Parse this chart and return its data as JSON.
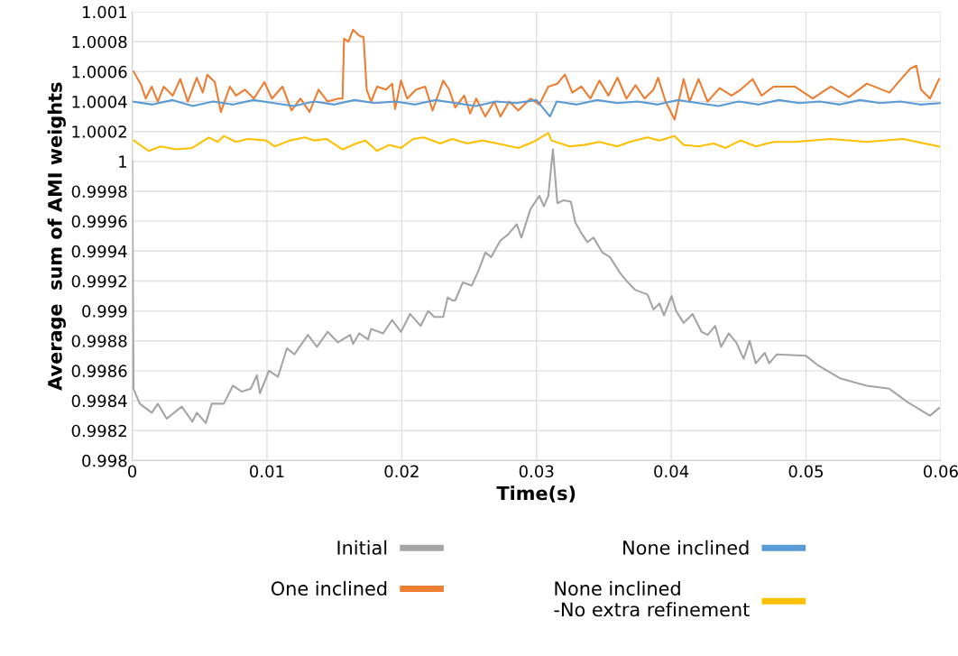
{
  "chart_data": {
    "type": "line",
    "xlabel": "Time(s)",
    "ylabel": "Average  sum of AMI weights",
    "xlim": [
      0,
      0.06
    ],
    "xticks": [
      0,
      0.01,
      0.02,
      0.03,
      0.04,
      0.05,
      0.06
    ],
    "ylim": [
      0.998,
      1.001
    ],
    "yticks": [
      0.998,
      0.9982,
      0.9984,
      0.9986,
      0.9988,
      0.999,
      0.9992,
      0.9994,
      0.9996,
      0.9998,
      1,
      1.0002,
      1.0004,
      1.0006,
      1.0008,
      1.001
    ],
    "grid": true,
    "legend": "bottom",
    "marker": "none",
    "line_style": "solid",
    "series": [
      {
        "name": "Initial",
        "color": "#a5a5a5",
        "x": [
          0,
          0.0001,
          0.00056,
          0.00145,
          0.0019,
          0.00256,
          0.00368,
          0.00446,
          0.0048,
          0.00546,
          0.0059,
          0.0068,
          0.00747,
          0.00814,
          0.0088,
          0.00925,
          0.00948,
          0.01015,
          0.01082,
          0.01148,
          0.01204,
          0.01304,
          0.01371,
          0.0145,
          0.01527,
          0.01617,
          0.01639,
          0.01684,
          0.0175,
          0.01773,
          0.01862,
          0.01929,
          0.01995,
          0.02062,
          0.0214,
          0.02196,
          0.02241,
          0.02308,
          0.02341,
          0.02375,
          0.02397,
          0.02453,
          0.0252,
          0.02575,
          0.0262,
          0.02664,
          0.02731,
          0.02787,
          0.02854,
          0.02888,
          0.02955,
          0.03021,
          0.03055,
          0.03088,
          0.03122,
          0.03155,
          0.032,
          0.03255,
          0.03289,
          0.03333,
          0.03378,
          0.03423,
          0.0349,
          0.03545,
          0.03623,
          0.03679,
          0.03734,
          0.03824,
          0.03868,
          0.03913,
          0.03946,
          0.04002,
          0.04036,
          0.04092,
          0.04158,
          0.04225,
          0.0427,
          0.04326,
          0.0437,
          0.04426,
          0.04482,
          0.04537,
          0.04582,
          0.04627,
          0.04694,
          0.04727,
          0.04783,
          0.05,
          0.05084,
          0.05251,
          0.05452,
          0.05619,
          0.05753,
          0.0592,
          0.05987
        ],
        "values": [
          1.0,
          0.99848,
          0.99838,
          0.99832,
          0.99838,
          0.99828,
          0.99836,
          0.99826,
          0.99832,
          0.99825,
          0.99838,
          0.99838,
          0.9985,
          0.99846,
          0.99848,
          0.99857,
          0.99845,
          0.9986,
          0.99856,
          0.99875,
          0.99871,
          0.99884,
          0.99876,
          0.99886,
          0.99879,
          0.99884,
          0.99878,
          0.99885,
          0.99881,
          0.99888,
          0.99885,
          0.99894,
          0.99886,
          0.99898,
          0.9989,
          0.999,
          0.99896,
          0.99896,
          0.99909,
          0.99907,
          0.99907,
          0.99919,
          0.99917,
          0.99928,
          0.99939,
          0.99936,
          0.99947,
          0.99951,
          0.99958,
          0.99949,
          0.99968,
          0.99977,
          0.9997,
          0.99977,
          1.00008,
          0.99972,
          0.99974,
          0.99973,
          0.99959,
          0.99952,
          0.99946,
          0.99949,
          0.99939,
          0.99936,
          0.99925,
          0.99919,
          0.99914,
          0.99911,
          0.99901,
          0.99905,
          0.99897,
          0.9991,
          0.999,
          0.99892,
          0.99898,
          0.99886,
          0.99884,
          0.9989,
          0.99876,
          0.99885,
          0.99879,
          0.99868,
          0.9988,
          0.99865,
          0.99872,
          0.99865,
          0.99871,
          0.9987,
          0.99864,
          0.99855,
          0.9985,
          0.99848,
          0.99839,
          0.9983,
          0.99835
        ]
      },
      {
        "name": "One inclined",
        "color": "#ed7d31",
        "x": [
          0.00011,
          0.00067,
          0.001,
          0.00145,
          0.0019,
          0.00234,
          0.00301,
          0.00357,
          0.00412,
          0.00479,
          0.00524,
          0.00557,
          0.00613,
          0.00658,
          0.00725,
          0.0077,
          0.00836,
          0.00903,
          0.00981,
          0.01037,
          0.01115,
          0.01182,
          0.01249,
          0.01316,
          0.01383,
          0.0145,
          0.01527,
          0.01561,
          0.01572,
          0.01605,
          0.01639,
          0.01684,
          0.01717,
          0.0174,
          0.01773,
          0.01817,
          0.01884,
          0.01929,
          0.01951,
          0.01995,
          0.0204,
          0.02107,
          0.02174,
          0.02229,
          0.02308,
          0.02352,
          0.02397,
          0.02464,
          0.02508,
          0.02553,
          0.0262,
          0.02687,
          0.02732,
          0.02798,
          0.02865,
          0.02955,
          0.03021,
          0.03088,
          0.03155,
          0.03211,
          0.03266,
          0.03333,
          0.034,
          0.03467,
          0.03534,
          0.03601,
          0.03668,
          0.03735,
          0.03802,
          0.03869,
          0.03902,
          0.03958,
          0.04025,
          0.04092,
          0.04136,
          0.04203,
          0.0427,
          0.04359,
          0.04448,
          0.04515,
          0.04604,
          0.04671,
          0.0476,
          0.04916,
          0.0505,
          0.05184,
          0.05318,
          0.05452,
          0.05619,
          0.05773,
          0.05819,
          0.05853,
          0.0592,
          0.05987
        ],
        "values": [
          1.0006,
          1.00051,
          1.00042,
          1.0005,
          1.0004,
          1.0005,
          1.00044,
          1.00055,
          1.0004,
          1.00056,
          1.00046,
          1.00058,
          1.00053,
          1.00033,
          1.0005,
          1.00044,
          1.00048,
          1.00042,
          1.00053,
          1.00042,
          1.0005,
          1.00034,
          1.00042,
          1.00033,
          1.00048,
          1.0004,
          1.00042,
          1.00042,
          1.00082,
          1.0008,
          1.00088,
          1.00084,
          1.00083,
          1.00048,
          1.0004,
          1.0005,
          1.00048,
          1.00052,
          1.00035,
          1.00054,
          1.00042,
          1.00048,
          1.0005,
          1.00034,
          1.00054,
          1.00048,
          1.00036,
          1.00044,
          1.00032,
          1.00042,
          1.0003,
          1.0004,
          1.0003,
          1.0004,
          1.00034,
          1.00042,
          1.00038,
          1.0005,
          1.00052,
          1.00058,
          1.00046,
          1.0005,
          1.00042,
          1.00054,
          1.00044,
          1.00056,
          1.00042,
          1.00051,
          1.00042,
          1.00048,
          1.00056,
          1.0004,
          1.00028,
          1.00055,
          1.0004,
          1.00055,
          1.0004,
          1.00049,
          1.00044,
          1.00048,
          1.00055,
          1.00044,
          1.0005,
          1.0005,
          1.00042,
          1.0005,
          1.00043,
          1.00052,
          1.00046,
          1.00062,
          1.00064,
          1.00048,
          1.00042,
          1.00055
        ]
      },
      {
        "name": "None inclined",
        "color": "#5b9bd5",
        "x": [
          0,
          0.0015,
          0.003,
          0.0045,
          0.006,
          0.0075,
          0.009,
          0.0105,
          0.012,
          0.0135,
          0.015,
          0.0165,
          0.018,
          0.0195,
          0.021,
          0.0225,
          0.024,
          0.0255,
          0.027,
          0.0285,
          0.03,
          0.031,
          0.0315,
          0.033,
          0.0345,
          0.036,
          0.0375,
          0.039,
          0.0405,
          0.042,
          0.0435,
          0.045,
          0.0465,
          0.048,
          0.0495,
          0.051,
          0.0525,
          0.054,
          0.0555,
          0.057,
          0.0585,
          0.06
        ],
        "values": [
          1.0004,
          1.00038,
          1.00041,
          1.00037,
          1.0004,
          1.00038,
          1.00041,
          1.00039,
          1.00037,
          1.0004,
          1.00038,
          1.00041,
          1.00039,
          1.0004,
          1.00038,
          1.00041,
          1.00039,
          1.00037,
          1.0004,
          1.00039,
          1.00041,
          1.0003,
          1.0004,
          1.00038,
          1.00041,
          1.00039,
          1.0004,
          1.00038,
          1.00041,
          1.00039,
          1.00037,
          1.0004,
          1.00038,
          1.00041,
          1.00039,
          1.0004,
          1.00038,
          1.00041,
          1.00039,
          1.0004,
          1.00038,
          1.00039
        ]
      },
      {
        "name": "None inclined\n-No extra refinement",
        "color": "#ffc000",
        "x": [
          0.00011,
          0.00122,
          0.00212,
          0.00323,
          0.00446,
          0.00569,
          0.00635,
          0.0068,
          0.0077,
          0.00858,
          0.00992,
          0.01059,
          0.01171,
          0.01282,
          0.01349,
          0.0144,
          0.01561,
          0.01662,
          0.01729,
          0.01817,
          0.01906,
          0.01995,
          0.02085,
          0.02163,
          0.02286,
          0.02375,
          0.02486,
          0.02597,
          0.02709,
          0.02865,
          0.02977,
          0.03088,
          0.03111,
          0.03244,
          0.03356,
          0.03467,
          0.036,
          0.0369,
          0.03824,
          0.03913,
          0.04024,
          0.04092,
          0.04203,
          0.04314,
          0.04403,
          0.04515,
          0.04627,
          0.0476,
          0.04916,
          0.05184,
          0.05452,
          0.05719,
          0.05987
        ],
        "values": [
          1.00014,
          1.00007,
          1.0001,
          1.00008,
          1.00009,
          1.00016,
          1.00013,
          1.00017,
          1.00013,
          1.00015,
          1.00014,
          1.0001,
          1.00014,
          1.00016,
          1.00014,
          1.00015,
          1.00008,
          1.00012,
          1.00014,
          1.00007,
          1.00011,
          1.00009,
          1.00015,
          1.00016,
          1.00012,
          1.00015,
          1.00012,
          1.00014,
          1.00012,
          1.00009,
          1.00013,
          1.00019,
          1.00014,
          1.0001,
          1.00011,
          1.00013,
          1.0001,
          1.00013,
          1.00016,
          1.00014,
          1.00017,
          1.00011,
          1.0001,
          1.00012,
          1.00009,
          1.00014,
          1.0001,
          1.00013,
          1.00013,
          1.00015,
          1.00013,
          1.00015,
          1.0001
        ]
      }
    ]
  }
}
